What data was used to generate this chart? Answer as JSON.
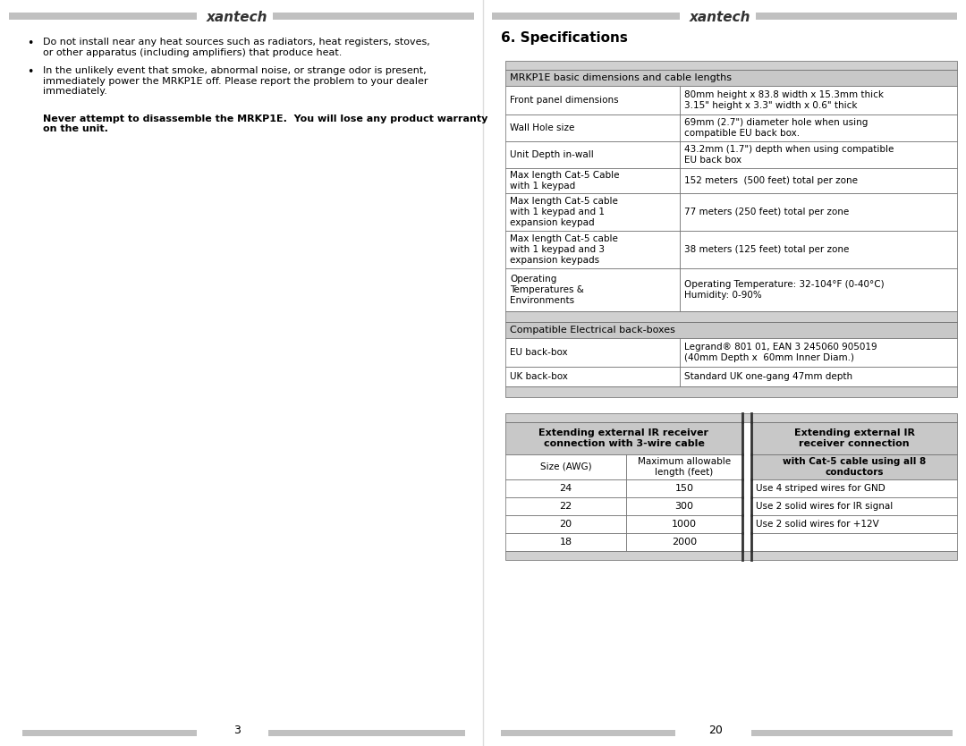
{
  "bg_color": "#ffffff",
  "left_page": {
    "bullets": [
      "Do not install near any heat sources such as radiators, heat registers, stoves,\nor other apparatus (including amplifiers) that produce heat.",
      "In the unlikely event that smoke, abnormal noise, or strange odor is present,\nimmediately power the MRKP1E off. Please report the problem to your dealer\nimmediately."
    ],
    "bold_text": "Never attempt to disassemble the MRKP1E.  You will lose any product warranty\non the unit.",
    "page_num": "3"
  },
  "right_page": {
    "section_title": "6. Specifications",
    "table1_header": "MRKP1E basic dimensions and cable lengths",
    "table1_rows": [
      [
        "Front panel dimensions",
        "80mm height x 83.8 width x 15.3mm thick\n3.15\" height x 3.3\" width x 0.6\" thick"
      ],
      [
        "Wall Hole size",
        "69mm (2.7\") diameter hole when using\ncompatible EU back box."
      ],
      [
        "Unit Depth in-wall",
        "43.2mm (1.7\") depth when using compatible\nEU back box"
      ],
      [
        "Max length Cat-5 Cable\nwith 1 keypad",
        "152 meters  (500 feet) total per zone"
      ],
      [
        "Max length Cat-5 cable\nwith 1 keypad and 1\nexpansion keypad",
        "77 meters (250 feet) total per zone"
      ],
      [
        "Max length Cat-5 cable\nwith 1 keypad and 3\nexpansion keypads",
        "38 meters (125 feet) total per zone"
      ],
      [
        "Operating\nTemperatures &\nEnvironments",
        "Operating Temperature: 32-104°F (0-40°C)\nHumidity: 0-90%"
      ]
    ],
    "table2_header": "Compatible Electrical back-boxes",
    "table2_rows": [
      [
        "EU back-box",
        "Legrand® 801 01, EAN 3 245060 905019\n(40mm Depth x  60mm Inner Diam.)"
      ],
      [
        "UK back-box",
        "Standard UK one-gang 47mm depth"
      ]
    ],
    "table3_col1_header": "Extending external IR receiver\nconnection with 3-wire cable",
    "table3_col3_header": "Extending external IR\nreceiver connection",
    "table3_subheader1": "Size (AWG)",
    "table3_subheader2": "Maximum allowable\nlength (feet)",
    "table3_subheader3": "with Cat-5 cable using all 8\nconductors",
    "table3_rows": [
      [
        "24",
        "150",
        "Use 4 striped wires for GND"
      ],
      [
        "22",
        "300",
        "Use 2 solid wires for IR signal"
      ],
      [
        "20",
        "1000",
        "Use 2 solid wires for +12V"
      ],
      [
        "18",
        "2000",
        ""
      ]
    ],
    "page_num": "20"
  },
  "header_bg": "#c0c0c0",
  "table_header_bg": "#c8c8c8",
  "table_gray_strip": "#d0d0d0",
  "table_white": "#ffffff",
  "border_color": "#666666",
  "text_color": "#000000",
  "logo_text": "xantech"
}
